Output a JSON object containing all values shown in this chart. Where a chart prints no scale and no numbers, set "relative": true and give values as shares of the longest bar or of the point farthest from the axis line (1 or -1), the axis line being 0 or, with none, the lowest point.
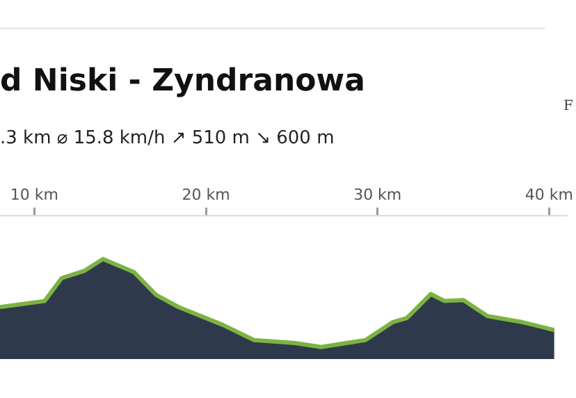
{
  "chart_data": {
    "type": "area",
    "title": "d Niski - Zyndranowa",
    "subtitle": ".3 km ⌀ 15.8 km/h ↗ 510 m ↘ 600 m",
    "annotations": [
      "F"
    ],
    "relative": true,
    "x": [
      8.0,
      10.6,
      11.6,
      12.9,
      14.0,
      15.8,
      17.1,
      18.4,
      21.0,
      22.8,
      25.2,
      26.7,
      29.3,
      30.9,
      31.7,
      33.1,
      33.9,
      35.0,
      36.4,
      38.4,
      40.3
    ],
    "series": [
      {
        "color": "#2e3a4b",
        "values": [
          0.52,
          0.58,
          0.81,
          0.88,
          1,
          0.87,
          0.64,
          0.52,
          0.34,
          0.19,
          0.16,
          0.12,
          0.19,
          0.37,
          0.41,
          0.65,
          0.58,
          0.59,
          0.43,
          0.37,
          0.29
        ]
      }
    ],
    "xlim": [
      8,
      41
    ],
    "xticks": [
      {
        "value": 10,
        "label": "10 km"
      },
      {
        "value": 20,
        "label": "20 km"
      },
      {
        "value": 30,
        "label": "30 km"
      },
      {
        "value": 40,
        "label": "40 km"
      }
    ],
    "legend": false,
    "grid": false
  }
}
